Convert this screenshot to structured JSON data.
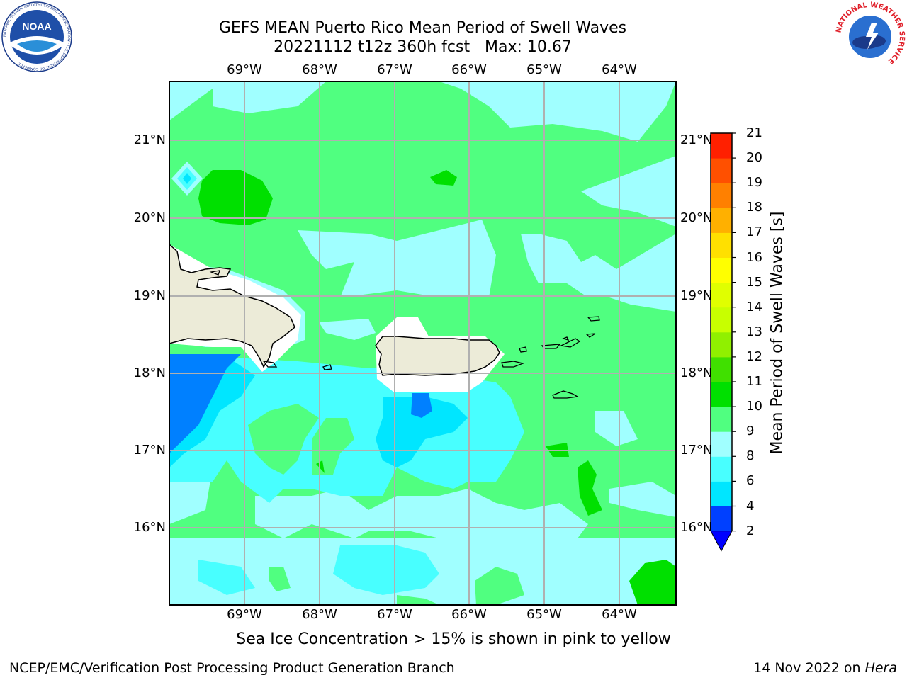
{
  "header": {
    "title_line1": "GEFS MEAN Puerto Rico Mean Period of Swell Waves",
    "title_line2": "20221112 t12z 360h fcst   Max: 10.67"
  },
  "map": {
    "lon_labels": [
      "69°W",
      "68°W",
      "67°W",
      "66°W",
      "65°W",
      "64°W"
    ],
    "lat_labels": [
      "21°N",
      "20°N",
      "19°N",
      "18°N",
      "17°N",
      "16°N"
    ],
    "land_color": "#ecebd8",
    "coastline_color": "#000000",
    "grid_color": "#b0b0b0"
  },
  "colorbar": {
    "label": "Mean Period of Swell Waves [s]",
    "ticks": [
      "2",
      "4",
      "6",
      "8",
      "9",
      "10",
      "11",
      "12",
      "13",
      "14",
      "15",
      "16",
      "17",
      "18",
      "19",
      "20",
      "21"
    ],
    "colors": [
      "#0040ff",
      "#00e6ff",
      "#48ffff",
      "#a0ffff",
      "#50ff80",
      "#00e000",
      "#40e000",
      "#90f000",
      "#c8ff00",
      "#e0ff00",
      "#ffff00",
      "#ffe000",
      "#ffb000",
      "#ff8000",
      "#ff5000",
      "#ff2000"
    ],
    "under_color": "#0000ff"
  },
  "footer": {
    "sea_ice_note": "Sea Ice Concentration > 15% is shown in pink to yellow",
    "branch": "NCEP/EMC/Verification Post Processing Product Generation Branch",
    "date": "14 Nov 2022 on",
    "host": "Hera"
  },
  "logos": {
    "noaa_text": "NOAA",
    "noaa_ring_text": "NATIONAL OCEANIC AND ATMOSPHERIC ADMINISTRATION · U.S. DEPARTMENT OF COMMERCE",
    "nws_ring_text": "NATIONAL WEATHER SERVICE"
  }
}
